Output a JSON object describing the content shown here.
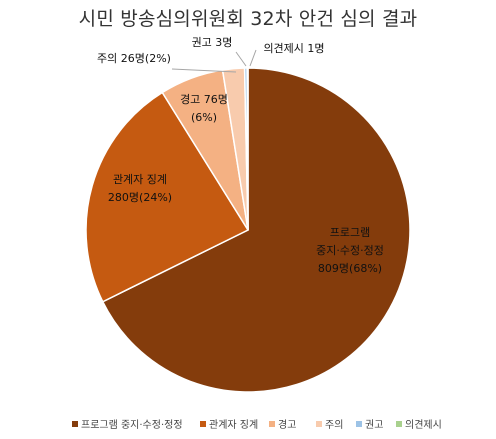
{
  "chart_data": {
    "type": "pie",
    "title": "시민 방송심의위원회 32차 안건 심의 결과",
    "slices": [
      {
        "name": "프로그램 중지·수정·정정",
        "value": 809,
        "percent": "68%",
        "color": "#843C0C",
        "label_lines": [
          "프로그램",
          "중지·수정·정정",
          "809명(68%)"
        ]
      },
      {
        "name": "관계자 징계",
        "value": 280,
        "percent": "24%",
        "color": "#C55A11",
        "label_lines": [
          "관계자 징계",
          "280명(24%)"
        ]
      },
      {
        "name": "경고",
        "value": 76,
        "percent": "6%",
        "color": "#F4B183",
        "label_lines": [
          "경고 76명",
          "(6%)"
        ]
      },
      {
        "name": "주의",
        "value": 26,
        "percent": "2%",
        "color": "#F8CBAD",
        "label_lines": [
          "주의 26명(2%)"
        ]
      },
      {
        "name": "권고",
        "value": 3,
        "percent": "",
        "color": "#9DC3E6",
        "label_lines": [
          "권고 3명"
        ]
      },
      {
        "name": "의견제시",
        "value": 1,
        "percent": "",
        "color": "#A9D18E",
        "label_lines": [
          "의견제시 1명"
        ]
      }
    ],
    "legend_position": "bottom"
  }
}
